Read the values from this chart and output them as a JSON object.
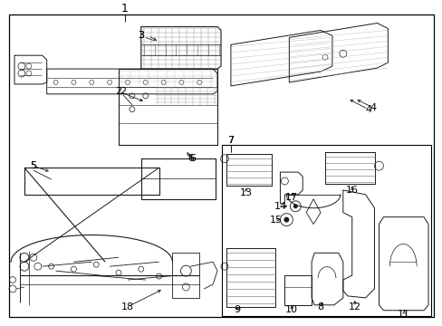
{
  "bg_color": "#ffffff",
  "border_color": "#000000",
  "line_color": "#1a1a1a",
  "text_color": "#000000",
  "fig_width": 4.89,
  "fig_height": 3.6,
  "dpi": 100
}
